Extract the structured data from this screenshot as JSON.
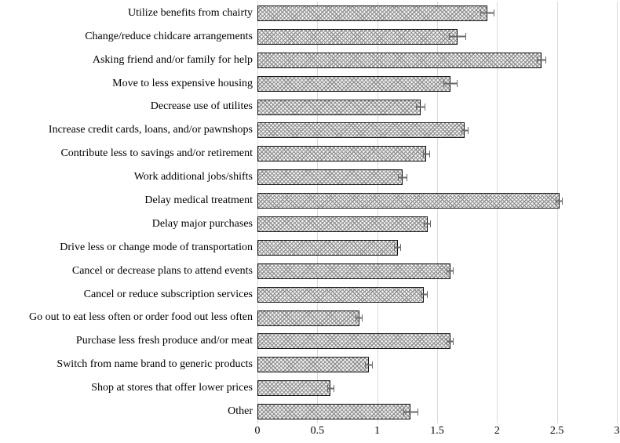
{
  "chart_data": {
    "type": "bar",
    "orientation": "horizontal",
    "title": "",
    "xlabel": "",
    "ylabel": "",
    "xlim": [
      0,
      3
    ],
    "x_ticks": [
      {
        "label": "0",
        "value": 0
      },
      {
        "label": "0.5",
        "value": 0.5
      },
      {
        "label": "1",
        "value": 1
      },
      {
        "label": "1.5",
        "value": 1.5
      },
      {
        "label": "2",
        "value": 2
      },
      {
        "label": "2.5",
        "value": 2.5
      },
      {
        "label": "3",
        "value": 3
      }
    ],
    "grid": "vertical-gridlines-on",
    "legend": "none",
    "categories": [
      "Utilize benefits from chairty",
      "Change/reduce chidcare arrangements",
      "Asking friend and/or family for help",
      "Move to less expensive housing",
      "Decrease use of utilites",
      "Increase credit cards, loans, and/or pawnshops",
      "Contribute less to savings and/or retirement",
      "Work additional jobs/shifts",
      "Delay medical treatment",
      "Delay major purchases",
      "Drive less or change mode of transportation",
      "Cancel or decrease plans to attend events",
      "Cancel or reduce subscription services",
      "Go out to eat less often or order food out less often",
      "Purchase less fresh produce and/or meat",
      "Switch from name brand to generic products",
      "Shop at stores that offer lower prices",
      "Other"
    ],
    "values": [
      1.92,
      1.67,
      2.37,
      1.61,
      1.36,
      1.73,
      1.41,
      1.21,
      2.52,
      1.42,
      1.17,
      1.61,
      1.39,
      0.85,
      1.61,
      0.93,
      0.61,
      1.28
    ],
    "errors": [
      0.06,
      0.07,
      0.04,
      0.06,
      0.04,
      0.03,
      0.03,
      0.04,
      0.03,
      0.03,
      0.03,
      0.03,
      0.03,
      0.03,
      0.03,
      0.03,
      0.03,
      0.06
    ],
    "colors": {
      "bar_fill_base": "#f4f4f4",
      "bar_hatch": "#8f8f8f",
      "bar_border": "#141414",
      "error_bar": "#6a6a6a",
      "gridline": "#d9d9d9",
      "axis_line": "#d9d9d9",
      "text": "#000000"
    }
  }
}
